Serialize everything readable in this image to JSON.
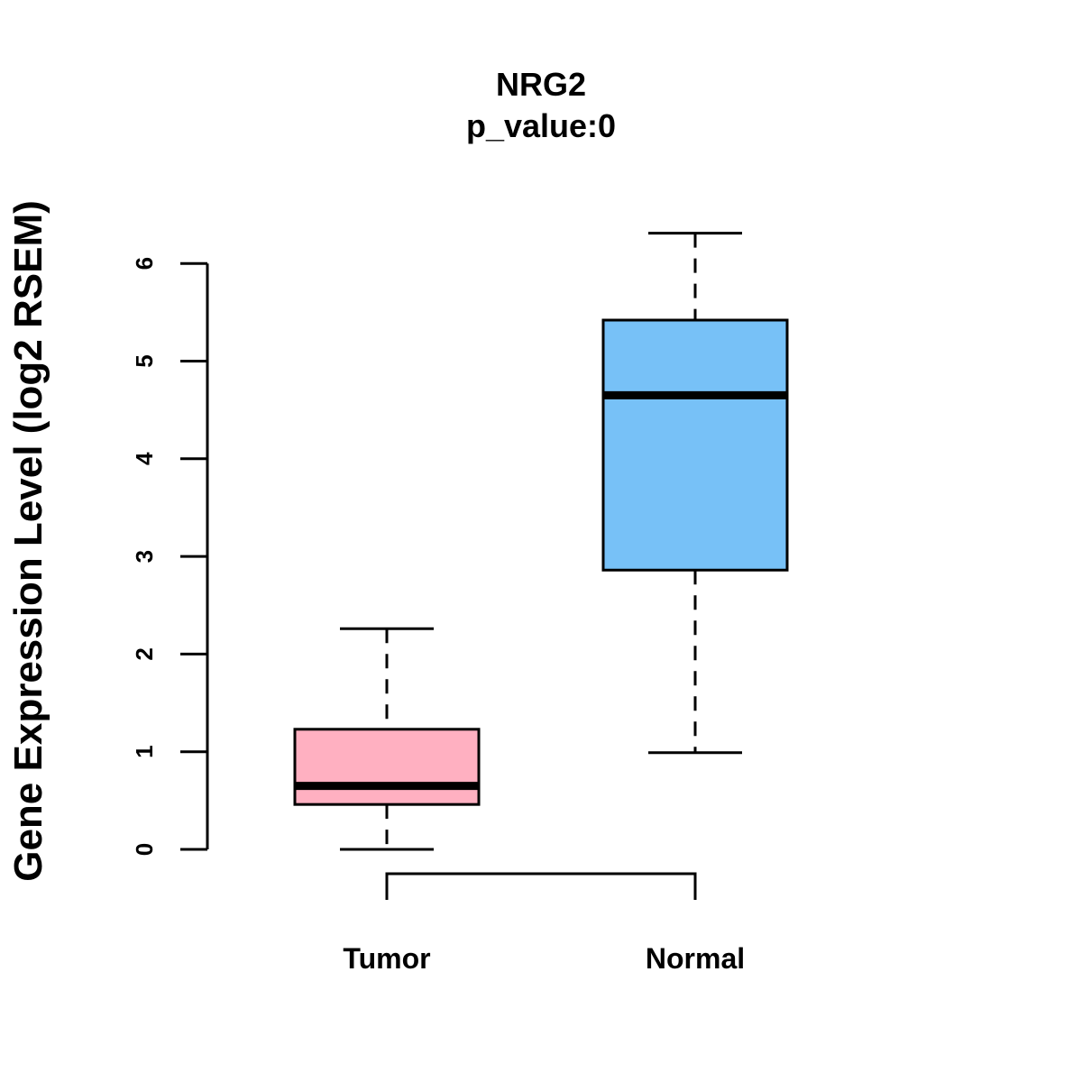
{
  "chart_data": {
    "type": "boxplot",
    "title": "NRG2",
    "subtitle": "p_value:0",
    "xlabel": "",
    "ylabel": "Gene Expression Level (log2 RSEM)",
    "ylim": [
      0,
      6
    ],
    "yticks": [
      "0",
      "1",
      "2",
      "3",
      "4",
      "5",
      "6"
    ],
    "categories": [
      "Tumor",
      "Normal"
    ],
    "series": [
      {
        "name": "Tumor",
        "min": 0.0,
        "q1": 0.46,
        "median": 0.65,
        "q3": 1.23,
        "max": 2.26,
        "color": "#FFB0C1"
      },
      {
        "name": "Normal",
        "min": 0.99,
        "q1": 2.86,
        "median": 4.65,
        "q3": 5.42,
        "max": 6.31,
        "color": "#77C1F7"
      }
    ],
    "comparison_bracket": [
      "Tumor",
      "Normal"
    ]
  }
}
